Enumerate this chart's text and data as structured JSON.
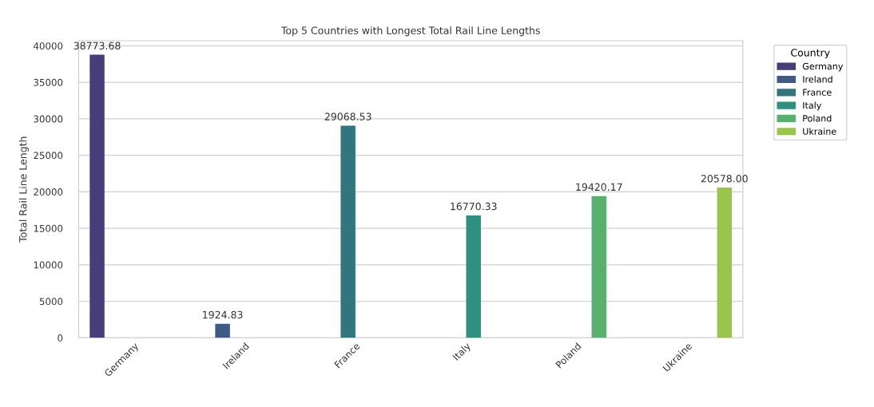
{
  "chart_data": {
    "type": "bar",
    "title": "Top 5 Countries with Longest Total Rail Line Lengths",
    "ylabel": "Total Rail Line Length",
    "legend_title": "Country",
    "categories": [
      "Germany",
      "Ireland",
      "France",
      "Italy",
      "Poland",
      "Ukraine"
    ],
    "series": [
      {
        "name": "Germany",
        "color": "#483d79",
        "values": [
          38773.68,
          null,
          null,
          null,
          null,
          null
        ],
        "value_labels": [
          "38773.68",
          null,
          null,
          null,
          null,
          null
        ]
      },
      {
        "name": "Ireland",
        "color": "#3e5b87",
        "values": [
          null,
          1924.83,
          null,
          null,
          null,
          null
        ],
        "value_labels": [
          null,
          "1924.83",
          null,
          null,
          null,
          null
        ]
      },
      {
        "name": "France",
        "color": "#31767f",
        "values": [
          null,
          null,
          29068.53,
          null,
          null,
          null
        ],
        "value_labels": [
          null,
          null,
          "29068.53",
          null,
          null,
          null
        ]
      },
      {
        "name": "Italy",
        "color": "#2e917f",
        "values": [
          null,
          null,
          null,
          16770.33,
          null,
          null
        ],
        "value_labels": [
          null,
          null,
          null,
          "16770.33",
          null,
          null
        ]
      },
      {
        "name": "Poland",
        "color": "#58b06f",
        "values": [
          null,
          null,
          null,
          null,
          19420.17,
          null
        ],
        "value_labels": [
          null,
          null,
          null,
          null,
          "19420.17",
          null
        ]
      },
      {
        "name": "Ukraine",
        "color": "#98c54a",
        "values": [
          null,
          null,
          null,
          null,
          null,
          20578.0
        ],
        "value_labels": [
          null,
          null,
          null,
          null,
          null,
          "20578.00"
        ]
      }
    ],
    "ylim": [
      0,
      40700
    ],
    "yticks": [
      0,
      5000,
      10000,
      15000,
      20000,
      25000,
      30000,
      35000,
      40000
    ],
    "grid": "y",
    "legend": "top right"
  }
}
